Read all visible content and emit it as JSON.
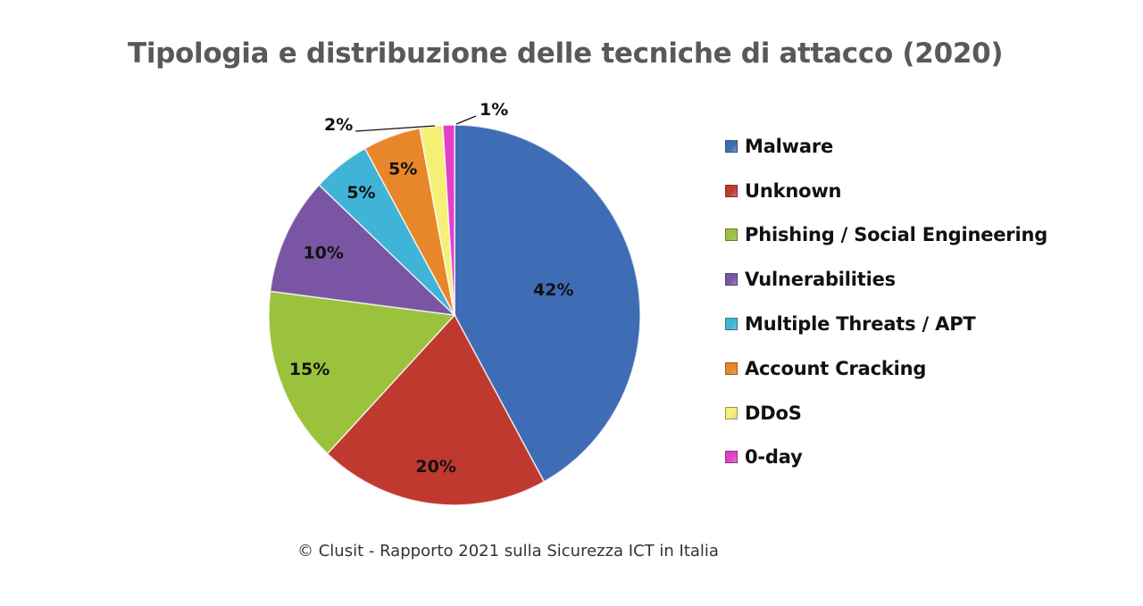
{
  "source": "© Clusit - Rapporto 2021 sulla Sicurezza ICT in Italia",
  "chart_data": {
    "type": "pie",
    "title": "Tipologia e distribuzione delle tecniche di attacco (2020)",
    "legend_position": "right",
    "slices": [
      {
        "label": "Malware",
        "value": 42,
        "display": "42%",
        "color": "#3e6db5"
      },
      {
        "label": "Unknown",
        "value": 20,
        "display": "20%",
        "color": "#c0392e"
      },
      {
        "label": "Phishing / Social Engineering",
        "value": 15,
        "display": "15%",
        "color": "#9bc23c"
      },
      {
        "label": "Vulnerabilities",
        "value": 10,
        "display": "10%",
        "color": "#7a55a3"
      },
      {
        "label": "Multiple Threats / APT",
        "value": 5,
        "display": "5%",
        "color": "#3fb4d6"
      },
      {
        "label": "Account Cracking",
        "value": 5,
        "display": "5%",
        "color": "#e8862a"
      },
      {
        "label": "DDoS",
        "value": 2,
        "display": "2%",
        "color": "#f5f078"
      },
      {
        "label": "0-day",
        "value": 1,
        "display": "1%",
        "color": "#e33fc8"
      }
    ]
  }
}
